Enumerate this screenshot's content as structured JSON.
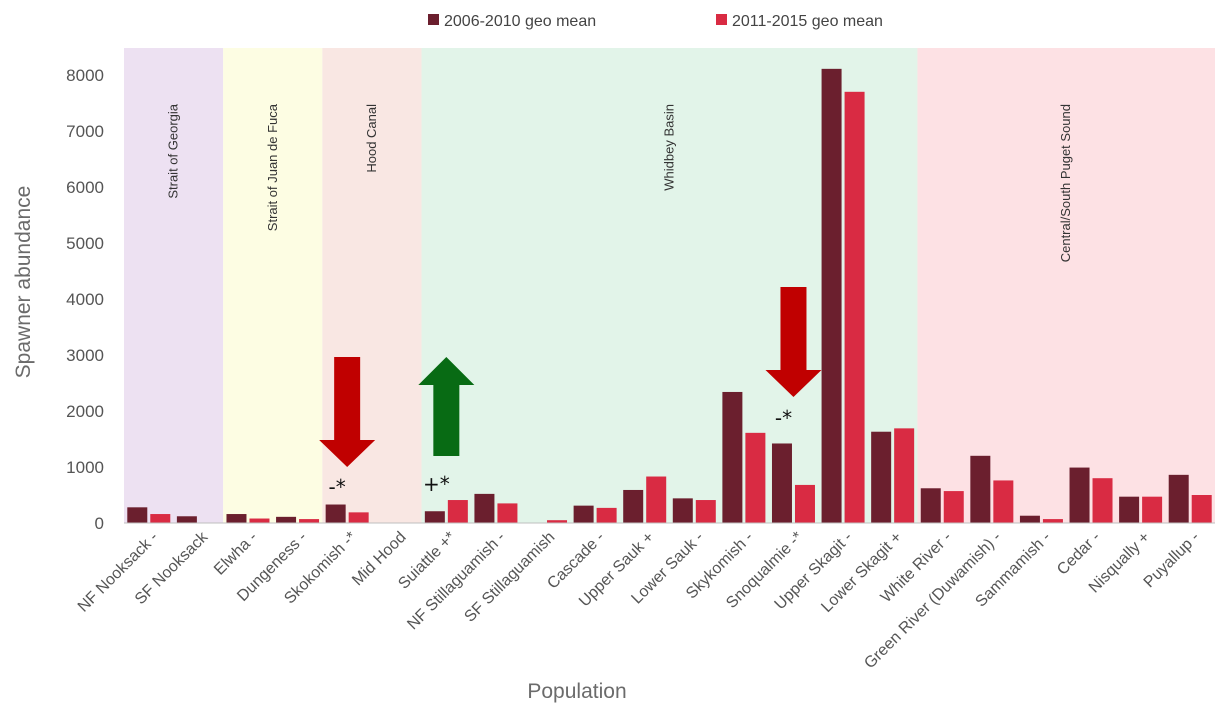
{
  "chart_data": {
    "type": "bar",
    "xlabel": "Population",
    "ylabel": "Spawner abundance",
    "ylim": [
      0,
      8000
    ],
    "yticks": [
      "0",
      "1000",
      "2000",
      "3000",
      "4000",
      "5000",
      "6000",
      "7000",
      "8000"
    ],
    "grid": false,
    "legend_position": "top",
    "categories": [
      "NF Nooksack -",
      "SF Nooksack",
      "Elwha -",
      "Dungeness -",
      "Skokomish -*",
      "Mid Hood",
      "Suiattle +*",
      "NF Stillaguamish -",
      "SF Stillaguamish",
      "Cascade -",
      "Upper Sauk +",
      "Lower Sauk -",
      "Skykomish -",
      "Snoqualmie -*",
      "Upper Skagit -",
      "Lower Skagit +",
      "White River -",
      "Green River (Duwamish) -",
      "Sammamish -",
      "Cedar -",
      "Nisqually +",
      "Puyallup -"
    ],
    "series": [
      {
        "name": "2006-2010 geo mean",
        "color": "#6b1f2e",
        "values": [
          280,
          120,
          160,
          110,
          330,
          0,
          210,
          520,
          0,
          310,
          590,
          440,
          2340,
          1420,
          8110,
          1630,
          620,
          1200,
          130,
          990,
          470,
          860
        ]
      },
      {
        "name": "2011-2015 geo mean",
        "color": "#d92b43",
        "values": [
          160,
          0,
          80,
          70,
          190,
          0,
          410,
          350,
          50,
          270,
          830,
          410,
          1610,
          680,
          7700,
          1690,
          570,
          760,
          70,
          800,
          470,
          500
        ]
      }
    ],
    "regions": [
      {
        "label": "Strait of Georgia",
        "color": "#ede1f2",
        "first": 0,
        "last": 1
      },
      {
        "label": "Strait of Juan de Fuca",
        "color": "#fdfde3",
        "first": 2,
        "last": 3
      },
      {
        "label": "Hood Canal",
        "color": "#f9e7e3",
        "first": 4,
        "last": 5
      },
      {
        "label": "Whidbey Basin",
        "color": "#e2f4e9",
        "first": 6,
        "last": 15
      },
      {
        "label": "Central/South Puget Sound",
        "color": "#fde1e4",
        "first": 16,
        "last": 21
      }
    ],
    "annotations": [
      {
        "kind": "arrow-down",
        "color": "#c00000",
        "category": 4
      },
      {
        "kind": "arrow-up",
        "color": "#086b14",
        "category": 6
      },
      {
        "kind": "arrow-down",
        "color": "#c00000",
        "category": 13
      },
      {
        "kind": "text",
        "text": "-*",
        "category": 4
      },
      {
        "kind": "text",
        "text": "+*",
        "category": 6
      },
      {
        "kind": "text",
        "text": "-*",
        "category": 13
      }
    ]
  }
}
